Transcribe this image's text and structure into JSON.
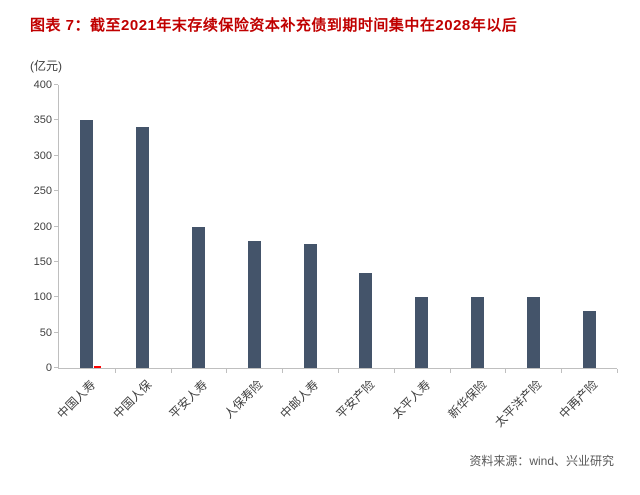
{
  "chart_data": {
    "type": "bar",
    "title": "图表 7：截至2021年末存续保险资本补充债到期时间集中在2028年以后",
    "unit_label": "(亿元)",
    "source": "资料来源：wind、兴业研究",
    "categories": [
      "中国人寿",
      "中国人保",
      "平安人寿",
      "人保寿险",
      "中邮人寿",
      "平安产险",
      "太平人寿",
      "新华保险",
      "太平洋产险",
      "中再产险"
    ],
    "series": [
      {
        "name": "",
        "color": "#44546A",
        "values": [
          350,
          340,
          200,
          180,
          175,
          135,
          100,
          100,
          100,
          80
        ]
      },
      {
        "name": "",
        "color": "#FF0000",
        "values": [
          3,
          0,
          0,
          0,
          0,
          0,
          0,
          0,
          0,
          0
        ]
      }
    ],
    "ylim": [
      0,
      400
    ],
    "ytick_step": 50,
    "grid": false,
    "legend": "none",
    "colors": {
      "title": "#C00000",
      "axis": "#BFBFBF",
      "tick_text": "#404040",
      "source_text": "#595959"
    }
  }
}
